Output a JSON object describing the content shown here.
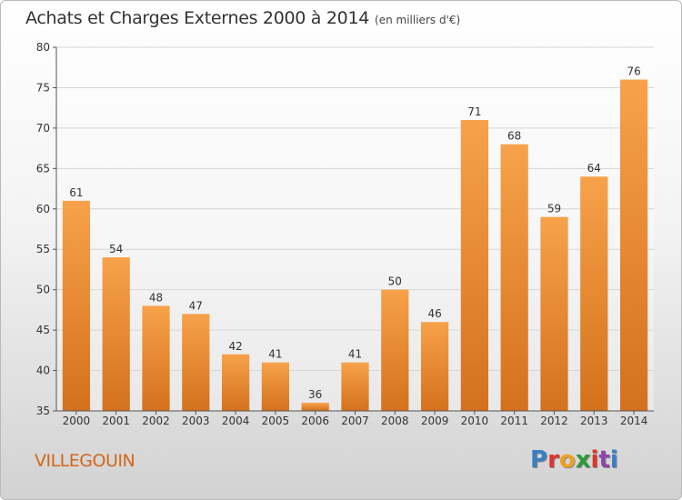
{
  "header": {
    "title": "Achats et Charges Externes 2000 à 2014",
    "subtitle": "(en milliers d'€)"
  },
  "footer": {
    "town": "VILLEGOUIN",
    "brand": "Proxiti",
    "brand_colors": [
      "#3a7fc4",
      "#e0342b",
      "#f0a020",
      "#2f9a3a",
      "#e0342b",
      "#8e44ad",
      "#3a7fc4"
    ]
  },
  "colors": {
    "bar_top": "#f7a24a",
    "bar_bottom": "#d4711c",
    "grid": "#d6d6d6",
    "axis": "#555555",
    "text": "#333333"
  },
  "chart_data": {
    "type": "bar",
    "title": "Achats et Charges Externes 2000 à 2014",
    "subtitle": "(en milliers d'€)",
    "categories": [
      "2000",
      "2001",
      "2002",
      "2003",
      "2004",
      "2005",
      "2006",
      "2007",
      "2008",
      "2009",
      "2010",
      "2011",
      "2012",
      "2013",
      "2014"
    ],
    "values": [
      61,
      54,
      48,
      47,
      42,
      41,
      36,
      41,
      50,
      46,
      71,
      68,
      59,
      64,
      76
    ],
    "data_labels": [
      "61",
      "54",
      "48",
      "47",
      "42",
      "41",
      "36",
      "41",
      "50",
      "46",
      "71",
      "68",
      "59",
      "64",
      "76"
    ],
    "ylim": [
      35,
      80
    ],
    "yticks": [
      35,
      40,
      45,
      50,
      55,
      60,
      65,
      70,
      75,
      80
    ],
    "ytick_labels": [
      "35",
      "40",
      "45",
      "50",
      "55",
      "60",
      "65",
      "70",
      "75",
      "80"
    ],
    "grid": true,
    "legend": "none"
  }
}
